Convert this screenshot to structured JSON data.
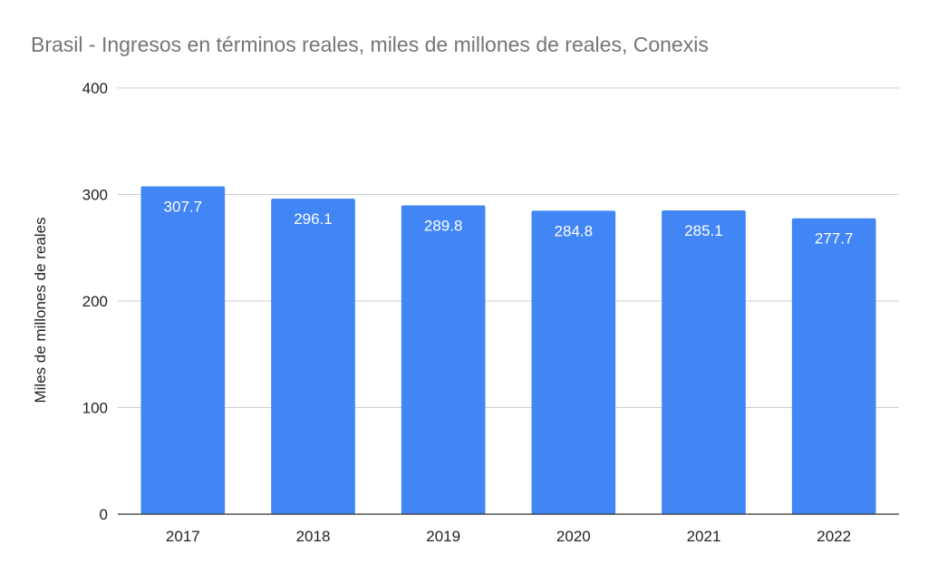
{
  "chart_data": {
    "type": "bar",
    "title": "Brasil - Ingresos en términos reales, miles de millones de reales, Conexis",
    "xlabel": "",
    "ylabel": "Miles de millones de reales",
    "categories": [
      "2017",
      "2018",
      "2019",
      "2020",
      "2021",
      "2022"
    ],
    "values": [
      307.7,
      296.1,
      289.8,
      284.8,
      285.1,
      277.7
    ],
    "data_labels": [
      "307.7",
      "296.1",
      "289.8",
      "284.8",
      "285.1",
      "277.7"
    ],
    "ylim": [
      0,
      400
    ],
    "yticks": [
      "0",
      "100",
      "200",
      "300",
      "400"
    ],
    "grid": true,
    "legend": "none",
    "bar_color": "#4285f4"
  }
}
